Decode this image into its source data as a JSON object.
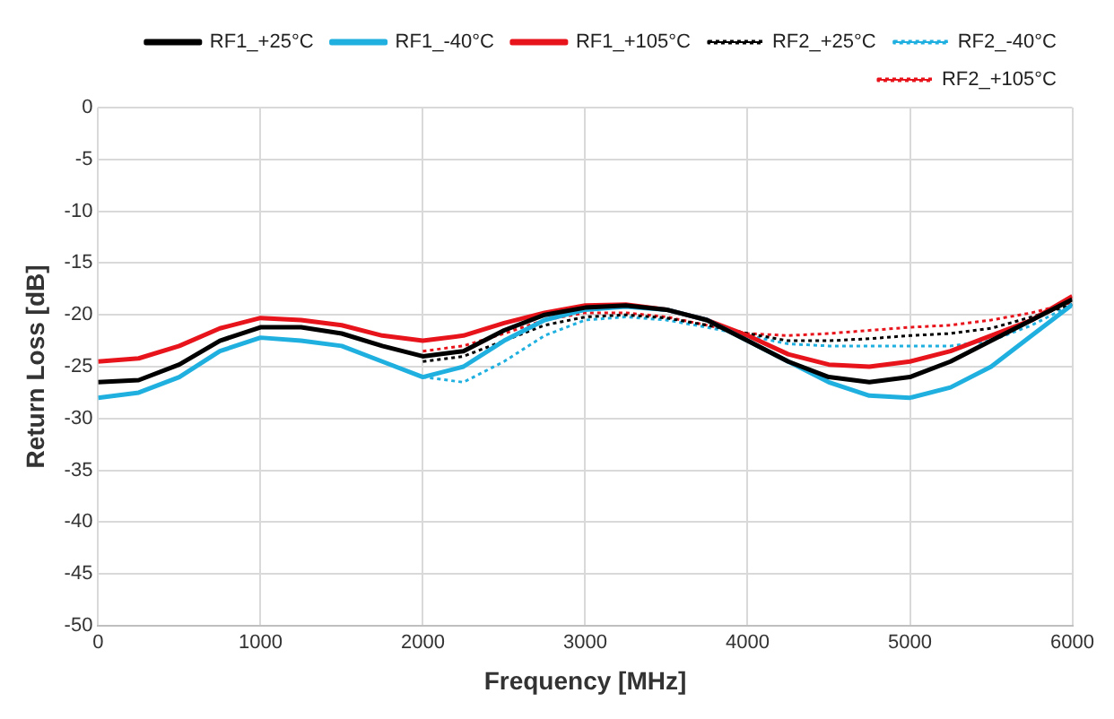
{
  "chart_data": {
    "type": "line",
    "xlabel": "Frequency [MHz]",
    "ylabel": "Return Loss [dB]",
    "x": [
      0,
      250,
      500,
      750,
      1000,
      1250,
      1500,
      1750,
      2000,
      2250,
      2500,
      2750,
      3000,
      3250,
      3500,
      3750,
      4000,
      4250,
      4500,
      4750,
      5000,
      5250,
      5500,
      5750,
      6000
    ],
    "series": [
      {
        "name": "RF1_+25°C",
        "color": "#000000",
        "line_style": "solid",
        "values": [
          -26.5,
          -26.3,
          -24.8,
          -22.5,
          -21.2,
          -21.2,
          -21.8,
          -23,
          -24,
          -23.5,
          -21.5,
          -20,
          -19.3,
          -19.1,
          -19.5,
          -20.5,
          -22.5,
          -24.5,
          -26,
          -26.5,
          -26,
          -24.5,
          -22.5,
          -20.5,
          -18.5
        ]
      },
      {
        "name": "RF1_-40°C",
        "color": "#1fb0e0",
        "line_style": "solid",
        "values": [
          -28,
          -27.5,
          -26,
          -23.5,
          -22.2,
          -22.5,
          -23,
          -24.5,
          -26,
          -25,
          -22.5,
          -20.5,
          -19.5,
          -19.2,
          -19.5,
          -20.5,
          -22.5,
          -24.5,
          -26.5,
          -27.8,
          -28,
          -27,
          -25,
          -22,
          -19
        ]
      },
      {
        "name": "RF1_+105°C",
        "color": "#e8141c",
        "line_style": "solid",
        "values": [
          -24.5,
          -24.2,
          -23,
          -21.3,
          -20.3,
          -20.5,
          -21,
          -22,
          -22.5,
          -22,
          -20.8,
          -19.8,
          -19.1,
          -19,
          -19.5,
          -20.5,
          -22,
          -23.8,
          -24.8,
          -25,
          -24.5,
          -23.5,
          -22,
          -20.5,
          -18.2
        ]
      },
      {
        "name": "RF2_+25°C",
        "color": "#000000",
        "line_style": "dotted",
        "values": [
          null,
          null,
          null,
          null,
          null,
          null,
          null,
          null,
          -24.5,
          -24,
          -22.5,
          -21,
          -20.2,
          -20,
          -20.3,
          -21,
          -21.8,
          -22.5,
          -22.5,
          -22.3,
          -22,
          -21.8,
          -21.3,
          -20.2,
          -19
        ]
      },
      {
        "name": "RF2_-40°C",
        "color": "#1fb0e0",
        "line_style": "dotted",
        "values": [
          null,
          null,
          null,
          null,
          null,
          null,
          null,
          null,
          -26,
          -26.5,
          -24.5,
          -22,
          -20.5,
          -20.2,
          -20.5,
          -21.2,
          -22,
          -22.8,
          -23,
          -23,
          -23,
          -23,
          -22.5,
          -21,
          -19
        ]
      },
      {
        "name": "RF2_+105°C",
        "color": "#e8141c",
        "line_style": "dotted",
        "values": [
          null,
          null,
          null,
          null,
          null,
          null,
          null,
          null,
          -23.5,
          -23,
          -21.8,
          -20.5,
          -19.8,
          -19.8,
          -20.2,
          -21,
          -21.8,
          -22,
          -21.8,
          -21.5,
          -21.2,
          -21,
          -20.5,
          -19.8,
          -18.8
        ]
      }
    ],
    "xlim": [
      0,
      6000
    ],
    "xticks": [
      0,
      1000,
      2000,
      3000,
      4000,
      5000,
      6000
    ],
    "ylim": [
      -50,
      0
    ],
    "yticks": [
      -50,
      -45,
      -40,
      -35,
      -30,
      -25,
      -20,
      -15,
      -10,
      -5,
      0
    ],
    "grid": true,
    "legend": "top right",
    "marker": "none"
  }
}
